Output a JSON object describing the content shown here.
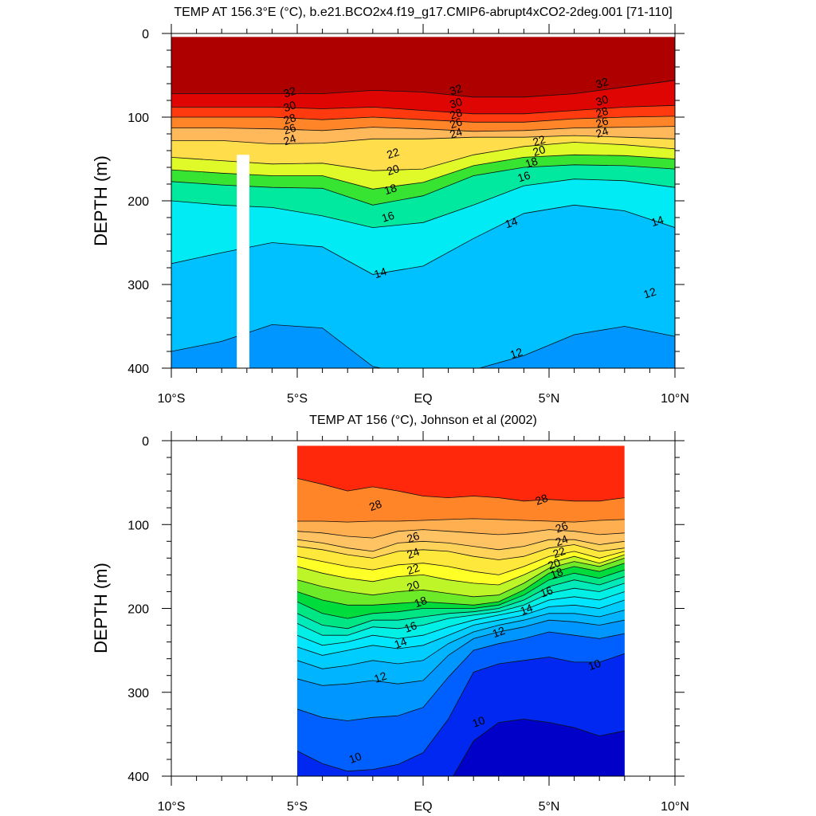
{
  "chart_data": [
    {
      "type": "heatmap",
      "title": "TEMP AT 156.3°E (°C), b.e21.BCO2x4.f19_g17.CMIP6-abrupt4xCO2-2deg.001 [71-110]",
      "ylabel": "DEPTH (m)",
      "xlim": [
        -10,
        10
      ],
      "ylim": [
        0,
        400
      ],
      "data_xrange": [
        -10,
        10
      ],
      "data_yrange": [
        4,
        400
      ],
      "x_ticks": [
        -10,
        -5,
        0,
        5,
        10
      ],
      "x_tick_labels": [
        "10°S",
        "5°S",
        "EQ",
        "5°N",
        "10°N"
      ],
      "y_ticks": [
        0,
        100,
        200,
        300,
        400
      ],
      "y_tick_labels": [
        "0",
        "100",
        "200",
        "300",
        "400"
      ],
      "missing_band": {
        "x": [
          -7.4,
          -6.9
        ],
        "y": [
          145,
          400
        ]
      },
      "profile_x": [
        -10,
        -8,
        -6,
        -4,
        -2,
        0,
        2,
        4,
        6,
        8,
        10
      ],
      "isotherms": [
        {
          "t": 32,
          "depth": [
            72,
            72,
            72,
            72,
            68,
            70,
            76,
            76,
            72,
            64,
            56
          ]
        },
        {
          "t": 30,
          "depth": [
            88,
            88,
            88,
            90,
            88,
            92,
            96,
            96,
            92,
            88,
            86
          ]
        },
        {
          "t": 28,
          "depth": [
            100,
            100,
            100,
            103,
            100,
            103,
            106,
            106,
            102,
            100,
            99
          ]
        },
        {
          "t": 26,
          "depth": [
            113,
            113,
            114,
            116,
            112,
            114,
            117,
            116,
            113,
            112,
            111
          ]
        },
        {
          "t": 24,
          "depth": [
            128,
            128,
            132,
            131,
            126,
            126,
            124,
            124,
            122,
            124,
            126
          ]
        },
        {
          "t": 22,
          "depth": [
            148,
            152,
            156,
            155,
            164,
            162,
            145,
            135,
            130,
            133,
            138
          ]
        },
        {
          "t": 20,
          "depth": [
            163,
            167,
            170,
            170,
            186,
            178,
            158,
            148,
            145,
            146,
            150
          ]
        },
        {
          "t": 18,
          "depth": [
            177,
            181,
            184,
            185,
            205,
            194,
            170,
            160,
            157,
            158,
            162
          ]
        },
        {
          "t": 16,
          "depth": [
            200,
            205,
            208,
            218,
            232,
            226,
            205,
            182,
            174,
            176,
            184
          ]
        },
        {
          "t": 14,
          "depth": [
            275,
            262,
            250,
            255,
            288,
            278,
            245,
            215,
            205,
            212,
            232
          ]
        },
        {
          "t": 12,
          "depth": [
            380,
            368,
            348,
            352,
            398,
            410,
            402,
            385,
            360,
            350,
            362
          ]
        }
      ],
      "contour_labels": [
        {
          "text": "32",
          "x": -5.3,
          "y": 70
        },
        {
          "text": "30",
          "x": -5.3,
          "y": 87
        },
        {
          "text": "28",
          "x": -5.3,
          "y": 102
        },
        {
          "text": "26",
          "x": -5.3,
          "y": 114
        },
        {
          "text": "24",
          "x": -5.3,
          "y": 127
        },
        {
          "text": "32",
          "x": 1.3,
          "y": 67
        },
        {
          "text": "30",
          "x": 1.3,
          "y": 83
        },
        {
          "text": "28",
          "x": 1.3,
          "y": 96
        },
        {
          "text": "26",
          "x": 1.3,
          "y": 107
        },
        {
          "text": "24",
          "x": 1.3,
          "y": 119
        },
        {
          "text": "32",
          "x": 7.1,
          "y": 59
        },
        {
          "text": "30",
          "x": 7.1,
          "y": 80
        },
        {
          "text": "28",
          "x": 7.1,
          "y": 94
        },
        {
          "text": "26",
          "x": 7.1,
          "y": 106
        },
        {
          "text": "24",
          "x": 7.1,
          "y": 118
        },
        {
          "text": "22",
          "x": -1.2,
          "y": 143
        },
        {
          "text": "20",
          "x": -1.2,
          "y": 163
        },
        {
          "text": "18",
          "x": -1.3,
          "y": 186
        },
        {
          "text": "16",
          "x": -1.4,
          "y": 219
        },
        {
          "text": "14",
          "x": -1.7,
          "y": 286
        },
        {
          "text": "22",
          "x": 4.6,
          "y": 128
        },
        {
          "text": "20",
          "x": 4.6,
          "y": 140
        },
        {
          "text": "18",
          "x": 4.3,
          "y": 154
        },
        {
          "text": "16",
          "x": 4.0,
          "y": 171
        },
        {
          "text": "14",
          "x": 3.5,
          "y": 226
        },
        {
          "text": "14",
          "x": 9.3,
          "y": 224
        },
        {
          "text": "12",
          "x": 9.0,
          "y": 310
        },
        {
          "text": "12",
          "x": 3.7,
          "y": 382
        }
      ]
    },
    {
      "type": "heatmap",
      "title": "TEMP AT 156 (°C), Johnson et al (2002)",
      "ylabel": "DEPTH (m)",
      "xlim": [
        -10,
        10
      ],
      "ylim": [
        0,
        400
      ],
      "data_xrange": [
        -5,
        8
      ],
      "data_yrange": [
        6,
        400
      ],
      "x_ticks": [
        -10,
        -5,
        0,
        5,
        10
      ],
      "x_tick_labels": [
        "10°S",
        "5°S",
        "EQ",
        "5°N",
        "10°N"
      ],
      "y_ticks": [
        0,
        100,
        200,
        300,
        400
      ],
      "y_tick_labels": [
        "0",
        "100",
        "200",
        "300",
        "400"
      ],
      "profile_x": [
        -5,
        -4,
        -3,
        -2,
        -1,
        0,
        1,
        2,
        3,
        4,
        5,
        6,
        7,
        8
      ],
      "isotherms": [
        {
          "t": 28,
          "depth": [
            45,
            52,
            60,
            55,
            60,
            66,
            68,
            66,
            68,
            72,
            70,
            72,
            72,
            68
          ]
        },
        {
          "t": 26,
          "depth": [
            96,
            96,
            97,
            96,
            96,
            95,
            94,
            93,
            94,
            95,
            96,
            97,
            95,
            94
          ]
        },
        {
          "t": 25,
          "depth": [
            108,
            110,
            114,
            116,
            108,
            106,
            108,
            110,
            112,
            110,
            106,
            108,
            112,
            110
          ]
        },
        {
          "t": 24,
          "depth": [
            118,
            122,
            128,
            132,
            122,
            120,
            122,
            126,
            130,
            126,
            118,
            118,
            124,
            120
          ]
        },
        {
          "t": 23,
          "depth": [
            126,
            130,
            136,
            140,
            132,
            130,
            132,
            138,
            142,
            138,
            128,
            124,
            132,
            128
          ]
        },
        {
          "t": 22,
          "depth": [
            138,
            144,
            150,
            154,
            148,
            146,
            150,
            156,
            160,
            150,
            138,
            132,
            140,
            132
          ]
        },
        {
          "t": 21,
          "depth": [
            150,
            158,
            164,
            168,
            162,
            160,
            166,
            170,
            172,
            160,
            146,
            138,
            146,
            136
          ]
        },
        {
          "t": 20,
          "depth": [
            166,
            174,
            180,
            184,
            180,
            178,
            182,
            186,
            184,
            170,
            152,
            144,
            150,
            140
          ]
        },
        {
          "t": 19,
          "depth": [
            180,
            190,
            196,
            196,
            194,
            192,
            194,
            196,
            192,
            178,
            158,
            150,
            156,
            146
          ]
        },
        {
          "t": 18,
          "depth": [
            192,
            206,
            212,
            206,
            204,
            200,
            200,
            200,
            196,
            184,
            166,
            158,
            164,
            154
          ]
        },
        {
          "t": 17,
          "depth": [
            206,
            220,
            224,
            214,
            214,
            210,
            206,
            204,
            200,
            190,
            174,
            166,
            172,
            162
          ]
        },
        {
          "t": 16,
          "depth": [
            218,
            232,
            232,
            222,
            224,
            220,
            212,
            208,
            204,
            196,
            182,
            176,
            180,
            170
          ]
        },
        {
          "t": 15,
          "depth": [
            232,
            244,
            240,
            232,
            236,
            232,
            222,
            214,
            208,
            202,
            190,
            186,
            190,
            180
          ]
        },
        {
          "t": 14,
          "depth": [
            246,
            256,
            250,
            244,
            248,
            244,
            232,
            220,
            214,
            208,
            198,
            196,
            200,
            190
          ]
        },
        {
          "t": 13,
          "depth": [
            262,
            272,
            268,
            262,
            266,
            262,
            242,
            228,
            220,
            214,
            206,
            206,
            210,
            202
          ]
        },
        {
          "t": 12,
          "depth": [
            284,
            292,
            290,
            286,
            290,
            286,
            256,
            236,
            228,
            222,
            214,
            216,
            220,
            214
          ]
        },
        {
          "t": 11,
          "depth": [
            320,
            330,
            334,
            330,
            328,
            318,
            282,
            250,
            242,
            236,
            228,
            232,
            236,
            230
          ]
        },
        {
          "t": 10,
          "depth": [
            370,
            385,
            394,
            392,
            386,
            372,
            332,
            276,
            266,
            262,
            258,
            264,
            264,
            254
          ]
        },
        {
          "t": 9,
          "depth": [
            410,
            410,
            410,
            410,
            410,
            410,
            410,
            358,
            336,
            332,
            336,
            342,
            352,
            346
          ]
        }
      ],
      "contour_labels": [
        {
          "text": "28",
          "x": -1.9,
          "y": 77
        },
        {
          "text": "26",
          "x": -0.4,
          "y": 115
        },
        {
          "text": "24",
          "x": -0.4,
          "y": 134
        },
        {
          "text": "22",
          "x": -0.4,
          "y": 153
        },
        {
          "text": "20",
          "x": -0.4,
          "y": 173
        },
        {
          "text": "18",
          "x": -0.1,
          "y": 192
        },
        {
          "text": "16",
          "x": -0.5,
          "y": 222
        },
        {
          "text": "14",
          "x": -0.9,
          "y": 241
        },
        {
          "text": "12",
          "x": -1.7,
          "y": 282
        },
        {
          "text": "10",
          "x": -2.7,
          "y": 378
        },
        {
          "text": "28",
          "x": 4.7,
          "y": 70
        },
        {
          "text": "26",
          "x": 5.5,
          "y": 103
        },
        {
          "text": "24",
          "x": 5.5,
          "y": 119
        },
        {
          "text": "22",
          "x": 5.4,
          "y": 133
        },
        {
          "text": "20",
          "x": 5.2,
          "y": 147
        },
        {
          "text": "18",
          "x": 5.3,
          "y": 158
        },
        {
          "text": "16",
          "x": 4.9,
          "y": 180
        },
        {
          "text": "14",
          "x": 4.1,
          "y": 201
        },
        {
          "text": "12",
          "x": 3.0,
          "y": 228
        },
        {
          "text": "10",
          "x": 6.8,
          "y": 267
        },
        {
          "text": "10",
          "x": 2.2,
          "y": 335
        }
      ]
    }
  ]
}
